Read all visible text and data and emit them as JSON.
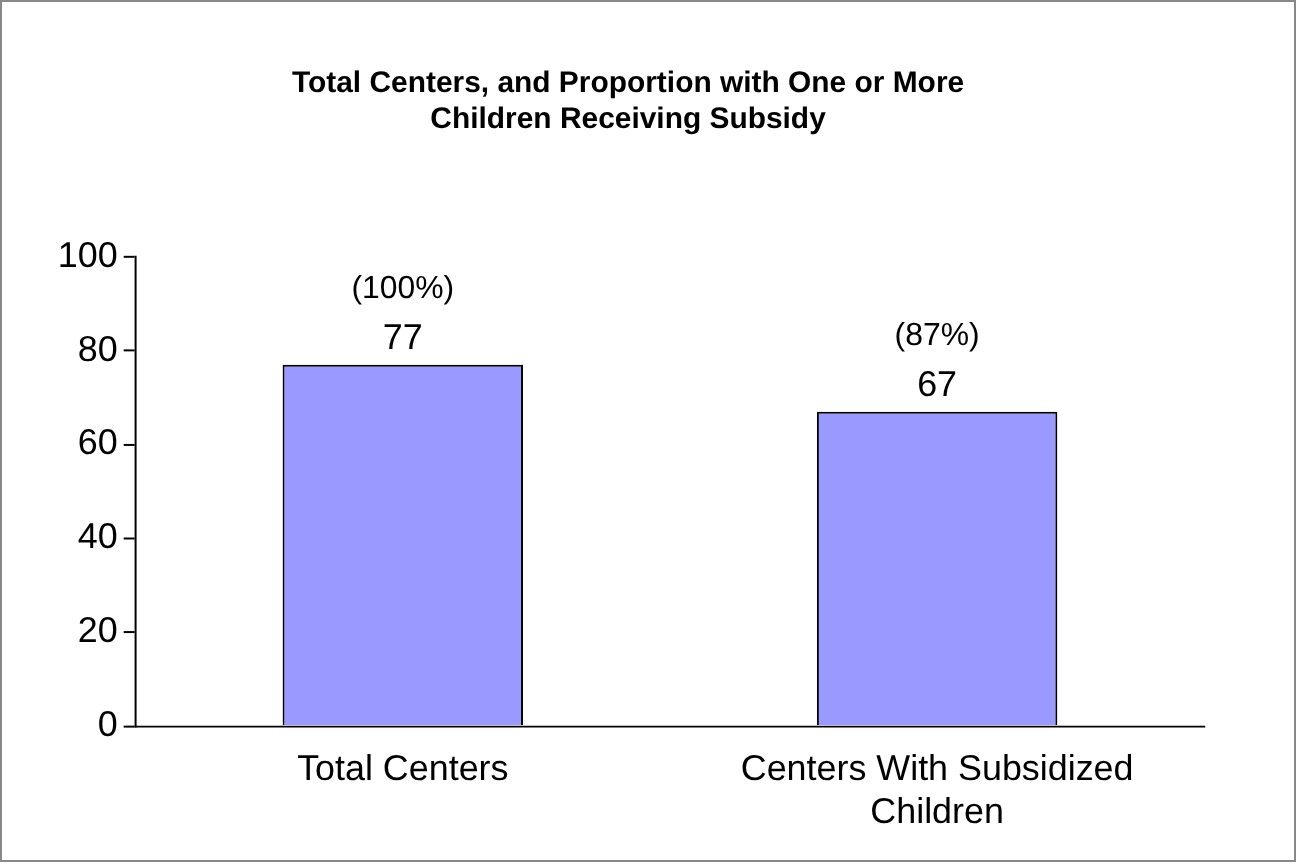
{
  "chart_data": {
    "type": "bar",
    "title": "Total Centers, and Proportion with One or More Children Receiving Subsidy",
    "categories": [
      "Total Centers",
      "Centers With Subsidized Children"
    ],
    "values": [
      77,
      67
    ],
    "color": "#9999ff",
    "ylim": [
      0,
      100
    ],
    "yticks": [
      0,
      20,
      40,
      60,
      80,
      100
    ],
    "grid": false,
    "legend": false,
    "data_labels": true,
    "annotations": [
      {
        "text": "(100%)",
        "x": "Total Centers",
        "y": 77
      },
      {
        "text": "(87%)",
        "x": "Centers With Subsidized Children",
        "y": 67
      }
    ]
  }
}
